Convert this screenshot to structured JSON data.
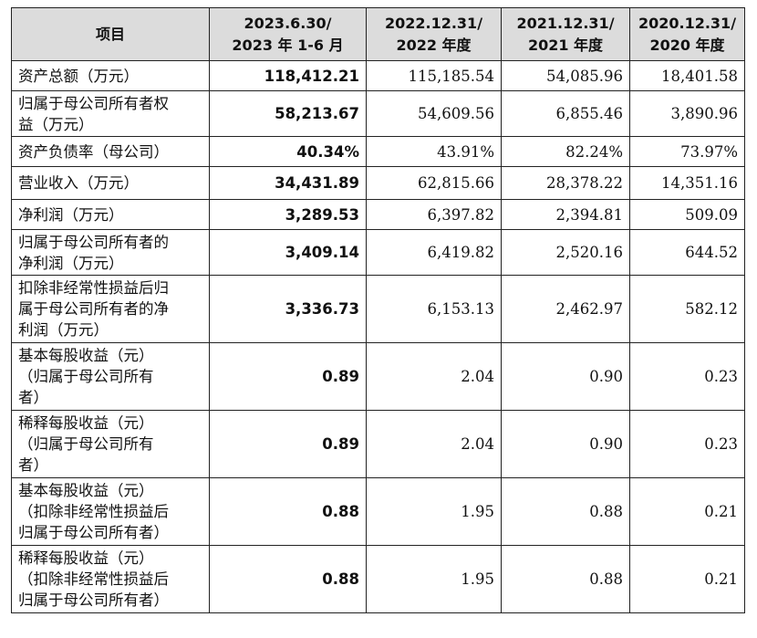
{
  "table": {
    "headers": [
      [
        "项目"
      ],
      [
        "2023.6.30/",
        "2023 年 1-6 月"
      ],
      [
        "2022.12.31/",
        "2022 年度"
      ],
      [
        "2021.12.31/",
        "2021 年度"
      ],
      [
        "2020.12.31/",
        "2020 年度"
      ]
    ],
    "rows": [
      {
        "label": [
          "资产总额（万元）"
        ],
        "values": [
          "118,412.21",
          "115,185.54",
          "54,085.96",
          "18,401.58"
        ]
      },
      {
        "label": [
          "归属于母公司所有者权",
          "益（万元）"
        ],
        "values": [
          "58,213.67",
          "54,609.56",
          "6,855.46",
          "3,890.96"
        ]
      },
      {
        "label": [
          "资产负债率（母公司）"
        ],
        "values": [
          "40.34%",
          "43.91%",
          "82.24%",
          "73.97%"
        ]
      },
      {
        "label": [
          "营业收入（万元）"
        ],
        "values": [
          "34,431.89",
          "62,815.66",
          "28,378.22",
          "14,351.16"
        ]
      },
      {
        "label": [
          "净利润（万元）"
        ],
        "values": [
          "3,289.53",
          "6,397.82",
          "2,394.81",
          "509.09"
        ]
      },
      {
        "label": [
          "归属于母公司所有者的",
          "净利润（万元）"
        ],
        "values": [
          "3,409.14",
          "6,419.82",
          "2,520.16",
          "644.52"
        ]
      },
      {
        "label": [
          "扣除非经常性损益后归",
          "属于母公司所有者的净",
          "利润（万元）"
        ],
        "values": [
          "3,336.73",
          "6,153.13",
          "2,462.97",
          "582.12"
        ]
      },
      {
        "label": [
          "基本每股收益（元）",
          "（归属于母公司所有",
          "者）"
        ],
        "values": [
          "0.89",
          "2.04",
          "0.90",
          "0.23"
        ]
      },
      {
        "label": [
          "稀释每股收益（元）",
          "（归属于母公司所有",
          "者）"
        ],
        "values": [
          "0.89",
          "2.04",
          "0.90",
          "0.23"
        ]
      },
      {
        "label": [
          "基本每股收益（元）",
          "（扣除非经常性损益后",
          "归属于母公司所有者）"
        ],
        "values": [
          "0.88",
          "1.95",
          "0.88",
          "0.21"
        ]
      },
      {
        "label": [
          "稀释每股收益（元）",
          "（扣除非经常性损益后",
          "归属于母公司所有者）"
        ],
        "values": [
          "0.88",
          "1.95",
          "0.88",
          "0.21"
        ]
      }
    ]
  }
}
